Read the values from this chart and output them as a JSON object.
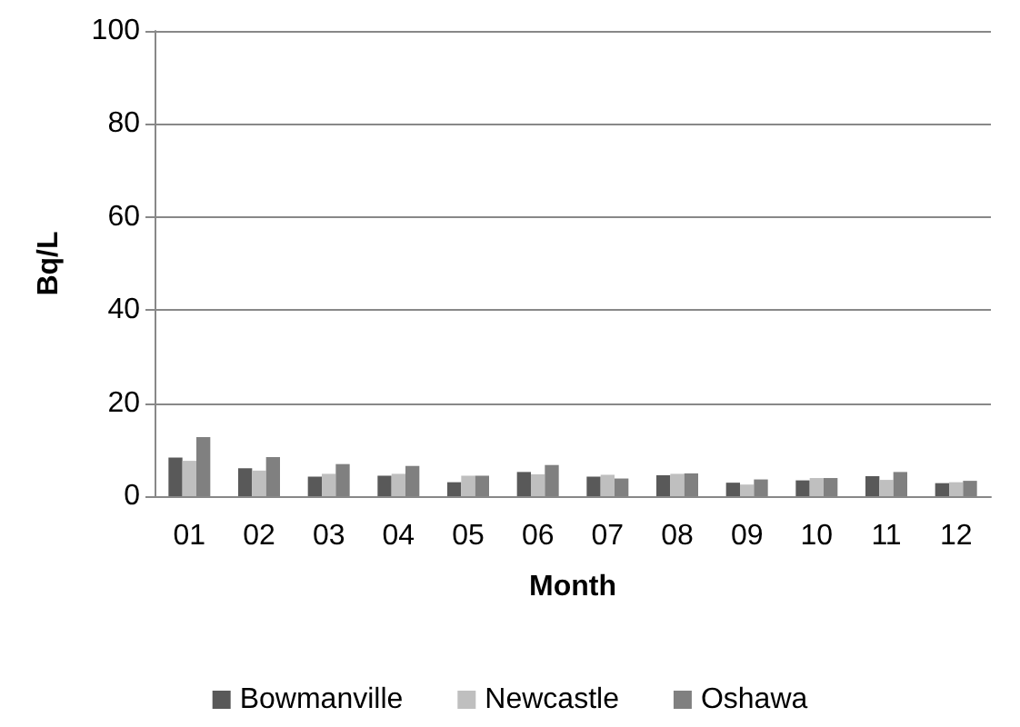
{
  "chart_data": {
    "type": "bar",
    "xlabel": "Month",
    "ylabel": "Bq/L",
    "categories": [
      "01",
      "02",
      "03",
      "04",
      "05",
      "06",
      "07",
      "08",
      "09",
      "10",
      "11",
      "12"
    ],
    "series": [
      {
        "name": "Bowmanville",
        "color": "#595959",
        "values": [
          8.3,
          6,
          4.2,
          4.4,
          3,
          5.2,
          4.2,
          4.5,
          2.9,
          3.4,
          4.3,
          2.8
        ]
      },
      {
        "name": "Newcastle",
        "color": "#bfbfbf",
        "values": [
          7.6,
          5.5,
          4.8,
          4.8,
          4.4,
          4.7,
          4.6,
          4.8,
          2.5,
          3.9,
          3.5,
          3
        ]
      },
      {
        "name": "Oshawa",
        "color": "#808080",
        "values": [
          12.7,
          8.4,
          6.9,
          6.5,
          4.4,
          6.7,
          3.8,
          4.9,
          3.6,
          3.9,
          5.2,
          3.3
        ]
      }
    ],
    "ylim": [
      0,
      100
    ],
    "yticks": [
      0,
      20,
      40,
      60,
      80,
      100
    ],
    "grid": "y",
    "legend": "bottom"
  }
}
